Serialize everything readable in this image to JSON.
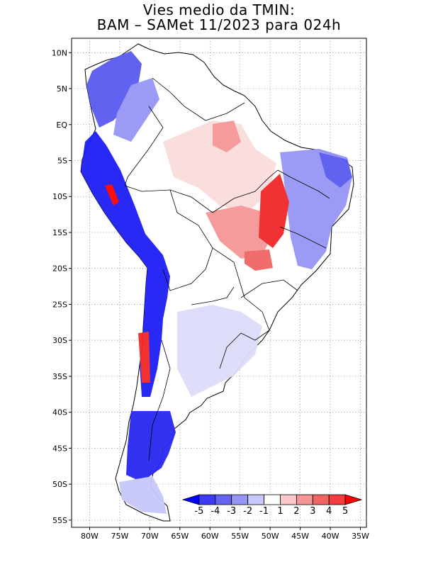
{
  "title": {
    "line1": "Vies medio da TMIN:",
    "line2": "BAM – SAMet 11/2023  para 024h"
  },
  "map": {
    "projection": "cylindrical equidistant",
    "lon_range": [
      -83,
      -34
    ],
    "lat_range": [
      -56,
      12
    ],
    "grid": "dotted",
    "lat_ticks": [
      {
        "label": "10N",
        "value": 10
      },
      {
        "label": "5N",
        "value": 5
      },
      {
        "label": "EQ",
        "value": 0
      },
      {
        "label": "5S",
        "value": -5
      },
      {
        "label": "10S",
        "value": -10
      },
      {
        "label": "15S",
        "value": -15
      },
      {
        "label": "20S",
        "value": -20
      },
      {
        "label": "25S",
        "value": -25
      },
      {
        "label": "30S",
        "value": -30
      },
      {
        "label": "35S",
        "value": -35
      },
      {
        "label": "40S",
        "value": -40
      },
      {
        "label": "45S",
        "value": -45
      },
      {
        "label": "50S",
        "value": -50
      },
      {
        "label": "55S",
        "value": -55
      }
    ],
    "lon_ticks": [
      {
        "label": "80W",
        "value": -80
      },
      {
        "label": "75W",
        "value": -75
      },
      {
        "label": "70W",
        "value": -70
      },
      {
        "label": "65W",
        "value": -65
      },
      {
        "label": "60W",
        "value": -60
      },
      {
        "label": "55W",
        "value": -55
      },
      {
        "label": "50W",
        "value": -50
      },
      {
        "label": "45W",
        "value": -45
      },
      {
        "label": "40W",
        "value": -40
      },
      {
        "label": "35W",
        "value": -35
      }
    ]
  },
  "colorbar": {
    "labels": [
      "-5",
      "-4",
      "-3",
      "-2",
      "-1",
      "1",
      "2",
      "3",
      "4",
      "5"
    ],
    "colors": [
      "#0000ff",
      "#3c3cf5",
      "#6464f0",
      "#9696f5",
      "#c8c8fa",
      "#ffffff",
      "#fac8c8",
      "#f59696",
      "#f06464",
      "#f53c3c",
      "#ff0000"
    ]
  }
}
